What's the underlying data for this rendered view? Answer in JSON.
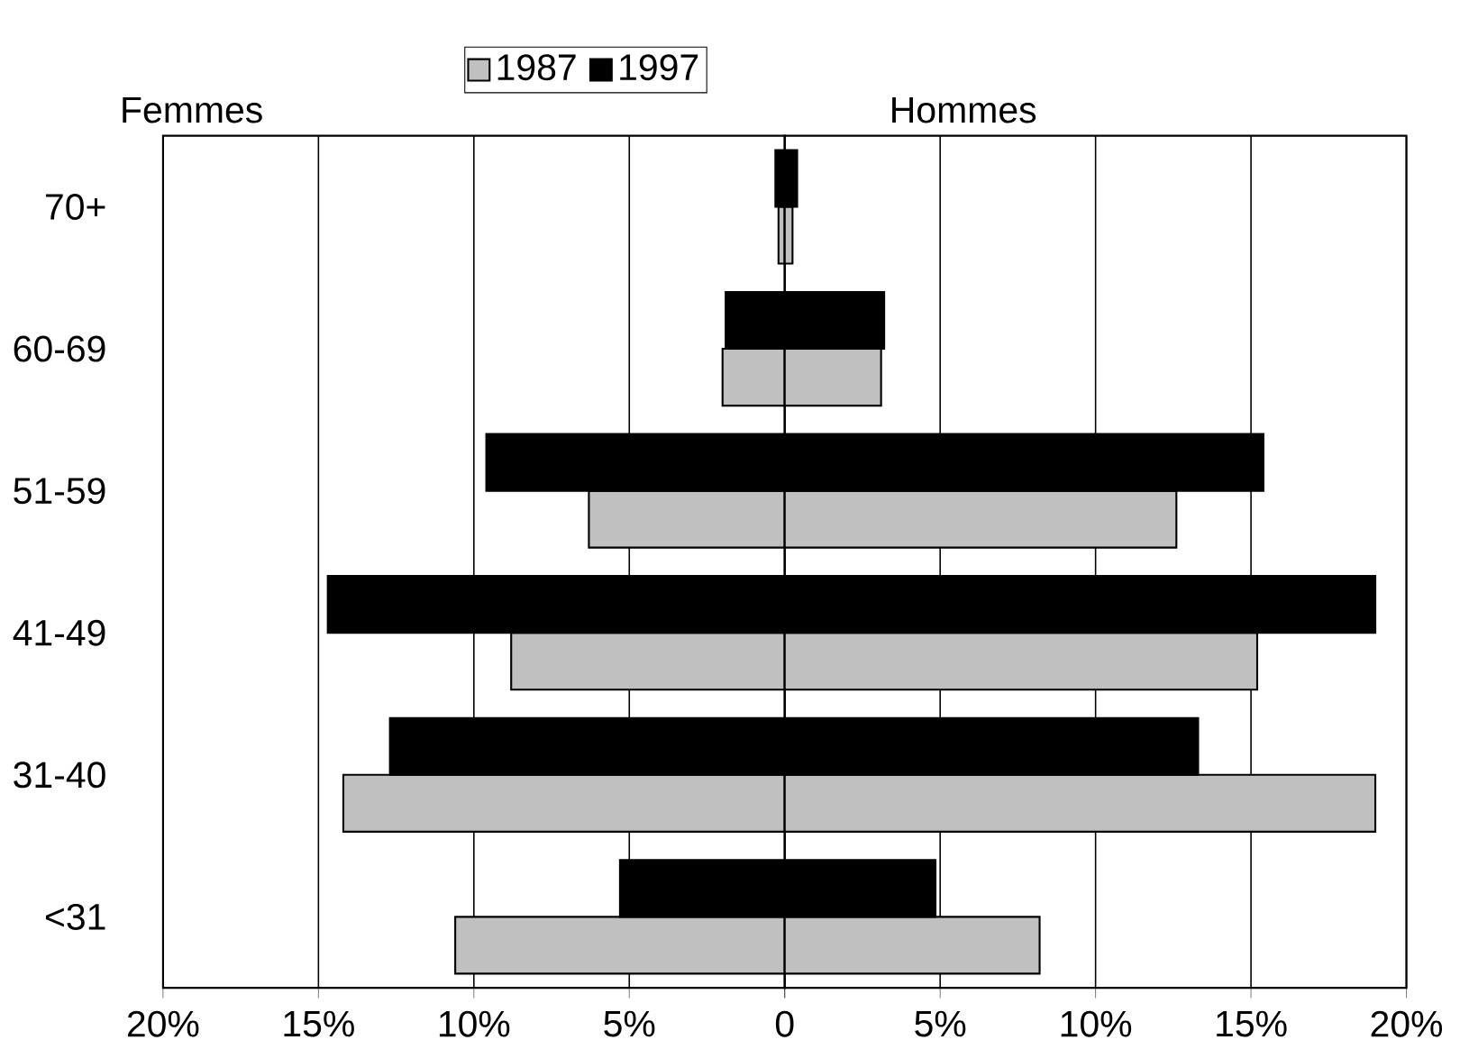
{
  "chart_data": [
    {
      "type": "bar",
      "orientation": "horizontal",
      "categories": [
        "70+",
        "60-69",
        "51-59",
        "41-49",
        "31-40",
        "<31"
      ],
      "series": [
        {
          "name": "1987",
          "color": "#c0c0c0",
          "values": [
            0.2,
            2.0,
            6.3,
            8.8,
            14.2,
            10.6
          ]
        },
        {
          "name": "1997",
          "color": "#000000",
          "values": [
            0.3,
            1.9,
            9.6,
            14.7,
            12.7,
            5.3
          ]
        }
      ],
      "xlim": [
        20,
        0
      ],
      "xticks": [
        {
          "value": 20,
          "label": "20%"
        },
        {
          "value": 15,
          "label": "15%"
        },
        {
          "value": 10,
          "label": "10%"
        },
        {
          "value": 5,
          "label": "5%"
        },
        0
      ],
      "annotations": [
        "Femmes"
      ],
      "grid": "x",
      "legend": "top"
    },
    {
      "type": "bar",
      "orientation": "horizontal",
      "categories": [
        null,
        null,
        null,
        null,
        null,
        null
      ],
      "series": [
        {
          "color": "#c0c0c0",
          "values": [
            0.25,
            3.1,
            12.6,
            15.2,
            19.0,
            8.2
          ]
        },
        {
          "color": "#000000",
          "values": [
            0.4,
            3.2,
            15.4,
            19.0,
            13.3,
            4.85
          ]
        }
      ],
      "xlim": [
        0,
        20
      ],
      "xticks": [
        {
          "value": 0,
          "label": null
        },
        {
          "value": 5,
          "label": "5%"
        },
        {
          "value": 10,
          "label": "10%"
        },
        {
          "value": 15,
          "label": "15%"
        },
        {
          "value": 20,
          "label": "20%"
        }
      ],
      "annotations": [
        "Hommes"
      ],
      "grid": "x",
      "tick_labels": "x"
    }
  ]
}
